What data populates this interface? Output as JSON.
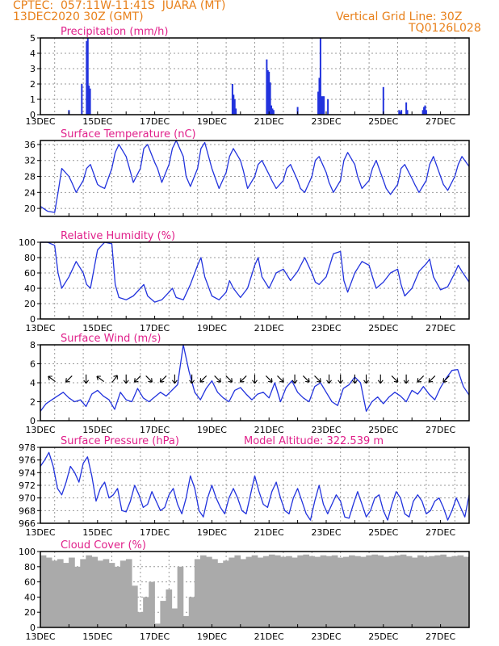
{
  "header": {
    "line1": "CPTEC:  057:11W-11:41S  JUARA (MT)",
    "line2": "13DEC2020 30Z (GMT)",
    "grid_note": "Vertical Grid Line: 30Z",
    "code": "TQ0126L028"
  },
  "colors": {
    "series": "#2233dd",
    "axis": "#000000",
    "grid": "#999999",
    "title": "#e0208a",
    "header": "#e8801a",
    "cloud": "#aaaaaa"
  },
  "x_ticks": [
    "13DEC",
    "15DEC",
    "17DEC",
    "19DEC",
    "21DEC",
    "23DEC",
    "25DEC",
    "27DEC"
  ],
  "chart_data": [
    {
      "id": "precip",
      "type": "bar",
      "title": "Precipitation (mm/h)",
      "ylim": [
        0,
        5
      ],
      "yticks": [
        0,
        1,
        2,
        3,
        4,
        5
      ],
      "x_unit": "days since 13DEC 00Z",
      "x": [
        1.0,
        1.45,
        1.62,
        1.66,
        1.7,
        1.74,
        6.72,
        6.76,
        6.8,
        6.84,
        7.92,
        7.96,
        8.0,
        8.04,
        8.08,
        8.12,
        8.16,
        9.0,
        9.72,
        9.76,
        9.8,
        9.84,
        9.88,
        9.92,
        10.06,
        12.0,
        12.55,
        12.59,
        12.63,
        12.8,
        12.84,
        13.38,
        13.42,
        13.46,
        13.5
      ],
      "values": [
        0.3,
        2.0,
        4.8,
        5.0,
        1.9,
        1.7,
        2.0,
        1.3,
        1.0,
        0.4,
        3.6,
        2.9,
        2.8,
        2.1,
        0.6,
        0.4,
        0.3,
        0.5,
        1.5,
        2.4,
        5.0,
        1.2,
        1.2,
        1.2,
        1.0,
        1.8,
        0.3,
        0.2,
        0.3,
        0.8,
        0.3,
        0.3,
        0.5,
        0.6,
        0.3
      ]
    },
    {
      "id": "temp",
      "type": "line",
      "title": "Surface Temperature (nC)",
      "ylim": [
        18,
        37
      ],
      "yticks": [
        20,
        24,
        28,
        32,
        36
      ],
      "x_unit": "days since 13DEC 00Z",
      "x": [
        0,
        0.25,
        0.5,
        0.62,
        0.75,
        1.0,
        1.1,
        1.25,
        1.5,
        1.62,
        1.75,
        2.0,
        2.1,
        2.25,
        2.5,
        2.62,
        2.75,
        3.0,
        3.1,
        3.25,
        3.5,
        3.62,
        3.75,
        4.0,
        4.1,
        4.25,
        4.5,
        4.62,
        4.75,
        5.0,
        5.1,
        5.25,
        5.5,
        5.62,
        5.75,
        6.0,
        6.1,
        6.25,
        6.5,
        6.62,
        6.75,
        7.0,
        7.1,
        7.25,
        7.5,
        7.62,
        7.75,
        8.0,
        8.1,
        8.25,
        8.5,
        8.62,
        8.75,
        9.0,
        9.1,
        9.25,
        9.5,
        9.62,
        9.75,
        10.0,
        10.1,
        10.25,
        10.5,
        10.62,
        10.75,
        11.0,
        11.1,
        11.25,
        11.5,
        11.62,
        11.75,
        12.0,
        12.1,
        12.25,
        12.5,
        12.62,
        12.75,
        13.0,
        13.1,
        13.25,
        13.5,
        13.62,
        13.75,
        14.0,
        14.1,
        14.25,
        14.5,
        14.62,
        14.75,
        15.0
      ],
      "values": [
        20.5,
        19.3,
        19.0,
        24.0,
        30.0,
        28.0,
        26.5,
        24.0,
        27.0,
        30.0,
        31.0,
        26.0,
        25.5,
        25.0,
        30.0,
        34.0,
        36.0,
        33.0,
        30.5,
        26.5,
        30.0,
        35.0,
        36.0,
        31.5,
        30.0,
        26.5,
        31.0,
        35.0,
        37.0,
        33.0,
        28.0,
        25.5,
        30.0,
        35.0,
        36.5,
        30.0,
        28.0,
        25.0,
        29.0,
        33.0,
        35.0,
        32.0,
        29.5,
        25.0,
        28.0,
        31.0,
        32.0,
        28.5,
        27.0,
        25.0,
        27.0,
        30.0,
        31.0,
        27.0,
        25.0,
        24.0,
        28.0,
        32.0,
        33.0,
        29.0,
        26.5,
        24.0,
        27.0,
        32.0,
        34.0,
        31.0,
        28.0,
        25.0,
        27.0,
        30.0,
        32.0,
        27.0,
        25.0,
        23.5,
        26.0,
        30.0,
        31.0,
        27.5,
        26.0,
        24.0,
        27.0,
        31.0,
        33.0,
        28.0,
        26.0,
        24.5,
        28.0,
        31.0,
        33.0,
        30.5
      ]
    },
    {
      "id": "rh",
      "type": "line",
      "title": "Relative Humidity (%)",
      "ylim": [
        0,
        100
      ],
      "yticks": [
        0,
        20,
        40,
        60,
        80,
        100
      ],
      "x_unit": "days since 13DEC 00Z",
      "x": [
        0,
        0.25,
        0.5,
        0.62,
        0.75,
        1.0,
        1.25,
        1.5,
        1.62,
        1.75,
        2.0,
        2.25,
        2.5,
        2.62,
        2.75,
        3.0,
        3.25,
        3.5,
        3.62,
        3.75,
        4.0,
        4.25,
        4.5,
        4.62,
        4.75,
        5.0,
        5.25,
        5.5,
        5.62,
        5.75,
        6.0,
        6.25,
        6.5,
        6.62,
        6.75,
        7.0,
        7.25,
        7.5,
        7.62,
        7.75,
        8.0,
        8.25,
        8.5,
        8.62,
        8.75,
        9.0,
        9.25,
        9.5,
        9.62,
        9.75,
        10.0,
        10.25,
        10.5,
        10.62,
        10.75,
        11.0,
        11.25,
        11.5,
        11.62,
        11.75,
        12.0,
        12.25,
        12.5,
        12.62,
        12.75,
        13.0,
        13.25,
        13.5,
        13.62,
        13.75,
        14.0,
        14.25,
        14.5,
        14.62,
        14.75,
        15.0
      ],
      "values": [
        100,
        100,
        96,
        60,
        40,
        55,
        75,
        60,
        45,
        40,
        90,
        100,
        98,
        45,
        28,
        25,
        30,
        40,
        45,
        30,
        22,
        25,
        35,
        40,
        28,
        25,
        45,
        70,
        80,
        55,
        30,
        25,
        35,
        50,
        40,
        28,
        40,
        70,
        80,
        55,
        40,
        60,
        65,
        58,
        50,
        62,
        80,
        60,
        48,
        45,
        55,
        85,
        88,
        50,
        35,
        60,
        75,
        70,
        55,
        40,
        48,
        60,
        65,
        45,
        30,
        40,
        62,
        72,
        78,
        55,
        38,
        42,
        60,
        70,
        62,
        48
      ]
    },
    {
      "id": "wind",
      "type": "line",
      "title": "Surface Wind (m/s)",
      "ylim": [
        0,
        8
      ],
      "yticks": [
        0,
        2,
        4,
        6,
        8
      ],
      "x_unit": "days since 13DEC 00Z",
      "x": [
        0,
        0.2,
        0.4,
        0.6,
        0.8,
        1.0,
        1.2,
        1.4,
        1.6,
        1.8,
        2.0,
        2.2,
        2.4,
        2.6,
        2.8,
        3.0,
        3.2,
        3.4,
        3.6,
        3.8,
        4.0,
        4.2,
        4.4,
        4.6,
        4.8,
        5.0,
        5.2,
        5.4,
        5.6,
        5.8,
        6.0,
        6.2,
        6.4,
        6.6,
        6.8,
        7.0,
        7.2,
        7.4,
        7.6,
        7.8,
        8.0,
        8.2,
        8.4,
        8.6,
        8.8,
        9.0,
        9.2,
        9.4,
        9.6,
        9.8,
        10.0,
        10.2,
        10.4,
        10.6,
        10.8,
        11.0,
        11.2,
        11.4,
        11.6,
        11.8,
        12.0,
        12.2,
        12.4,
        12.6,
        12.8,
        13.0,
        13.2,
        13.4,
        13.6,
        13.8,
        14.0,
        14.2,
        14.4,
        14.6,
        14.8,
        15.0
      ],
      "values": [
        1.0,
        1.8,
        2.2,
        2.6,
        3.0,
        2.4,
        2.0,
        2.2,
        1.5,
        2.8,
        3.2,
        2.6,
        2.2,
        1.2,
        3.0,
        2.2,
        2.0,
        3.4,
        2.4,
        2.0,
        2.5,
        3.0,
        2.6,
        3.2,
        3.8,
        8.0,
        5.2,
        3.0,
        2.2,
        3.4,
        4.2,
        3.0,
        2.4,
        2.0,
        3.2,
        3.5,
        2.8,
        2.2,
        2.8,
        3.0,
        2.4,
        4.0,
        2.0,
        3.5,
        4.2,
        3.0,
        2.4,
        2.0,
        3.6,
        4.0,
        3.0,
        2.0,
        1.6,
        3.4,
        3.8,
        4.6,
        4.0,
        1.0,
        2.0,
        2.5,
        1.8,
        2.5,
        3.0,
        2.6,
        2.0,
        3.2,
        2.8,
        3.6,
        2.8,
        2.2,
        3.5,
        4.5,
        5.3,
        5.4,
        3.6,
        2.7
      ],
      "vectors": [
        {
          "x": 0.4,
          "dir": "up-left"
        },
        {
          "x": 1.0,
          "dir": "down-left"
        },
        {
          "x": 1.6,
          "dir": "down"
        },
        {
          "x": 2.1,
          "dir": "up-left"
        },
        {
          "x": 2.6,
          "dir": "up-right"
        },
        {
          "x": 3.0,
          "dir": "down"
        },
        {
          "x": 3.4,
          "dir": "down-left"
        },
        {
          "x": 3.8,
          "dir": "down-right"
        },
        {
          "x": 4.3,
          "dir": "down-left"
        },
        {
          "x": 4.7,
          "dir": "down"
        },
        {
          "x": 5.3,
          "dir": "down"
        },
        {
          "x": 5.7,
          "dir": "down-left"
        },
        {
          "x": 6.2,
          "dir": "down-right"
        },
        {
          "x": 6.6,
          "dir": "down-right"
        },
        {
          "x": 7.1,
          "dir": "down-left"
        },
        {
          "x": 7.5,
          "dir": "down"
        },
        {
          "x": 8.0,
          "dir": "down-right"
        },
        {
          "x": 8.4,
          "dir": "down-right"
        },
        {
          "x": 8.9,
          "dir": "down"
        },
        {
          "x": 9.3,
          "dir": "down-right"
        },
        {
          "x": 9.7,
          "dir": "down-right"
        },
        {
          "x": 10.1,
          "dir": "down"
        },
        {
          "x": 10.5,
          "dir": "down"
        },
        {
          "x": 11.0,
          "dir": "down"
        },
        {
          "x": 11.4,
          "dir": "down"
        },
        {
          "x": 11.9,
          "dir": "down"
        },
        {
          "x": 12.4,
          "dir": "down-right"
        },
        {
          "x": 12.8,
          "dir": "down"
        },
        {
          "x": 13.3,
          "dir": "down-left"
        },
        {
          "x": 13.7,
          "dir": "down-left"
        },
        {
          "x": 14.2,
          "dir": "down-left"
        }
      ]
    },
    {
      "id": "pressure",
      "type": "line",
      "title": "Surface Pressure (hPa)",
      "annotation": "Model Altitude: 322.539 m",
      "ylim": [
        966,
        978
      ],
      "yticks": [
        966,
        968,
        970,
        972,
        974,
        976,
        978
      ],
      "x_unit": "days since 13DEC 00Z",
      "x": [
        0,
        0.15,
        0.3,
        0.45,
        0.6,
        0.75,
        0.9,
        1.05,
        1.2,
        1.35,
        1.5,
        1.65,
        1.8,
        1.95,
        2.1,
        2.25,
        2.4,
        2.55,
        2.7,
        2.85,
        3.0,
        3.15,
        3.3,
        3.45,
        3.6,
        3.75,
        3.9,
        4.05,
        4.2,
        4.35,
        4.5,
        4.65,
        4.8,
        4.95,
        5.1,
        5.25,
        5.4,
        5.55,
        5.7,
        5.85,
        6.0,
        6.15,
        6.3,
        6.45,
        6.6,
        6.75,
        6.9,
        7.05,
        7.2,
        7.35,
        7.5,
        7.65,
        7.8,
        7.95,
        8.1,
        8.25,
        8.4,
        8.55,
        8.7,
        8.85,
        9.0,
        9.15,
        9.3,
        9.45,
        9.6,
        9.75,
        9.9,
        10.05,
        10.2,
        10.35,
        10.5,
        10.65,
        10.8,
        10.95,
        11.1,
        11.25,
        11.4,
        11.55,
        11.7,
        11.85,
        12.0,
        12.15,
        12.3,
        12.45,
        12.6,
        12.75,
        12.9,
        13.05,
        13.2,
        13.35,
        13.5,
        13.65,
        13.8,
        13.95,
        14.1,
        14.25,
        14.4,
        14.55,
        14.7,
        14.85,
        15.0
      ],
      "values": [
        975.0,
        976.0,
        977.2,
        975.0,
        971.5,
        970.5,
        972.5,
        975.0,
        974.0,
        972.5,
        975.5,
        976.5,
        973.5,
        969.5,
        971.5,
        972.5,
        970.0,
        970.5,
        971.5,
        968.0,
        967.8,
        969.5,
        972.0,
        970.5,
        968.5,
        969.0,
        971.0,
        969.5,
        968.0,
        968.5,
        970.5,
        971.5,
        969.0,
        967.5,
        970.0,
        973.5,
        971.5,
        968.0,
        967.0,
        970.0,
        972.0,
        970.0,
        968.5,
        967.5,
        970.0,
        971.5,
        970.0,
        968.0,
        967.5,
        970.5,
        973.5,
        971.0,
        969.0,
        968.5,
        971.0,
        972.5,
        970.0,
        968.0,
        967.5,
        970.0,
        971.5,
        969.5,
        967.5,
        966.5,
        969.5,
        972.0,
        969.0,
        967.5,
        969.0,
        970.5,
        969.5,
        967.0,
        966.8,
        969.0,
        971.0,
        969.0,
        967.0,
        968.0,
        970.0,
        970.5,
        968.0,
        966.5,
        969.0,
        971.0,
        970.0,
        967.5,
        967.0,
        969.5,
        970.5,
        969.5,
        967.5,
        968.0,
        969.5,
        970.0,
        968.5,
        966.5,
        968.0,
        970.0,
        968.5,
        967.0,
        970.5
      ]
    },
    {
      "id": "cloud",
      "type": "bar",
      "title": "Cloud Cover (%)",
      "ylim": [
        0,
        100
      ],
      "yticks": [
        0,
        20,
        40,
        60,
        80,
        100
      ],
      "x_unit": "days since 13DEC 00Z",
      "x": [
        0.1,
        0.3,
        0.5,
        0.7,
        0.9,
        1.1,
        1.3,
        1.5,
        1.7,
        1.9,
        2.1,
        2.3,
        2.5,
        2.7,
        2.9,
        3.1,
        3.3,
        3.5,
        3.7,
        3.9,
        4.1,
        4.3,
        4.5,
        4.7,
        4.9,
        5.1,
        5.3,
        5.5,
        5.7,
        5.9,
        6.1,
        6.3,
        6.5,
        6.7,
        6.9,
        7.1,
        7.3,
        7.5,
        7.7,
        7.9,
        8.1,
        8.3,
        8.5,
        8.7,
        8.9,
        9.1,
        9.3,
        9.5,
        9.7,
        9.9,
        10.1,
        10.3,
        10.5,
        10.7,
        10.9,
        11.1,
        11.3,
        11.5,
        11.7,
        11.9,
        12.1,
        12.3,
        12.5,
        12.7,
        12.9,
        13.1,
        13.3,
        13.5,
        13.7,
        13.9,
        14.1,
        14.3,
        14.5,
        14.7,
        14.9
      ],
      "values": [
        95,
        92,
        88,
        90,
        85,
        92,
        80,
        90,
        95,
        93,
        88,
        90,
        85,
        80,
        88,
        90,
        55,
        20,
        40,
        60,
        5,
        35,
        50,
        25,
        80,
        15,
        40,
        90,
        95,
        93,
        90,
        85,
        88,
        92,
        95,
        90,
        93,
        95,
        92,
        94,
        96,
        95,
        93,
        94,
        92,
        95,
        96,
        94,
        93,
        95,
        94,
        95,
        92,
        93,
        95,
        94,
        93,
        95,
        96,
        95,
        93,
        94,
        95,
        96,
        94,
        92,
        95,
        93,
        94,
        95,
        96,
        93,
        94,
        95,
        93
      ]
    }
  ]
}
